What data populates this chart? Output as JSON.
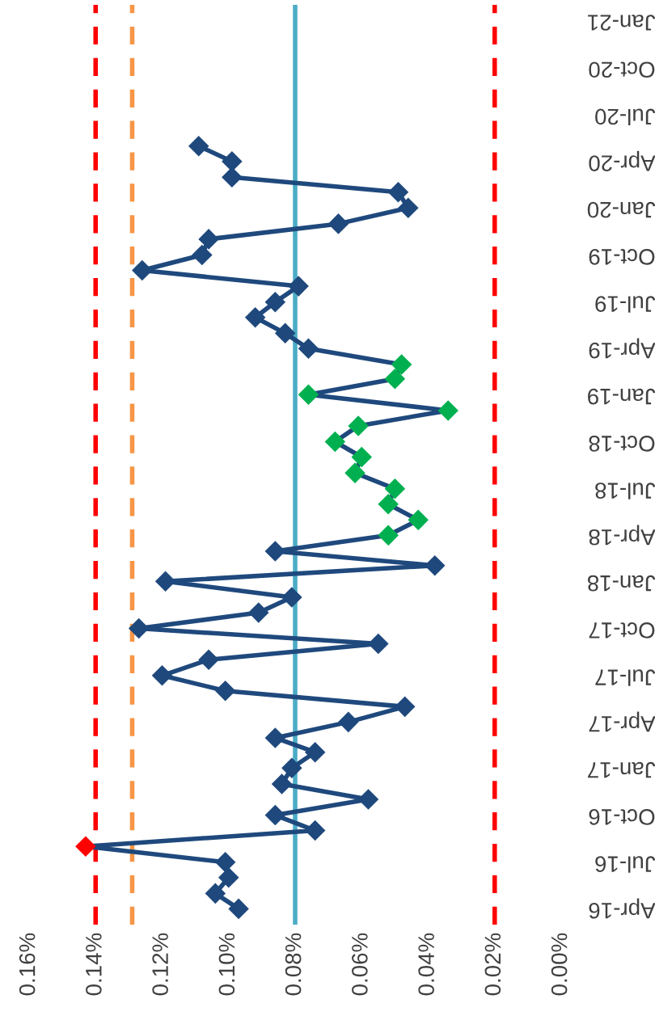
{
  "chart_data": {
    "type": "line",
    "orientation": "horizontal",
    "marker": "diamond",
    "line_style": "solid",
    "x": [
      "2016-04",
      "2016-05",
      "2016-06",
      "2016-07",
      "2016-08",
      "2016-09",
      "2016-10",
      "2016-11",
      "2016-12",
      "2017-01",
      "2017-02",
      "2017-03",
      "2017-04",
      "2017-05",
      "2017-06",
      "2017-07",
      "2017-08",
      "2017-09",
      "2017-10",
      "2017-11",
      "2017-12",
      "2018-01",
      "2018-02",
      "2018-03",
      "2018-04",
      "2018-05",
      "2018-06",
      "2018-07",
      "2018-08",
      "2018-09",
      "2018-10",
      "2018-11",
      "2018-12",
      "2019-01",
      "2019-02",
      "2019-03",
      "2019-04",
      "2019-05",
      "2019-06",
      "2019-07",
      "2019-08",
      "2019-09",
      "2019-10",
      "2019-11",
      "2019-12",
      "2020-01",
      "2020-02",
      "2020-03",
      "2020-04",
      "2020-05"
    ],
    "series": [
      {
        "color": "#1f497d",
        "values": [
          0.097,
          0.104,
          0.1,
          0.101,
          0.143,
          0.074,
          0.086,
          0.058,
          0.084,
          0.081,
          0.074,
          0.086,
          0.064,
          0.047,
          0.101,
          0.12,
          0.106,
          0.055,
          0.127,
          0.091,
          0.081,
          0.119,
          0.038,
          0.086,
          0.052,
          0.043,
          0.052,
          0.05,
          0.062,
          0.06,
          0.068,
          0.061,
          0.034,
          0.076,
          0.05,
          0.048,
          0.076,
          0.083,
          0.092,
          0.086,
          0.079,
          0.126,
          0.108,
          0.106,
          0.067,
          0.046,
          0.049,
          0.099,
          0.099,
          0.109
        ],
        "colors": [
          "#1f497d",
          "#1f497d",
          "#1f497d",
          "#1f497d",
          "#ff0000",
          "#1f497d",
          "#1f497d",
          "#1f497d",
          "#1f497d",
          "#1f497d",
          "#1f497d",
          "#1f497d",
          "#1f497d",
          "#1f497d",
          "#1f497d",
          "#1f497d",
          "#1f497d",
          "#1f497d",
          "#1f497d",
          "#1f497d",
          "#1f497d",
          "#1f497d",
          "#1f497d",
          "#1f497d",
          "#00b050",
          "#00b050",
          "#00b050",
          "#00b050",
          "#00b050",
          "#00b050",
          "#00b050",
          "#00b050",
          "#00b050",
          "#00b050",
          "#00b050",
          "#00b050",
          "#1f497d",
          "#1f497d",
          "#1f497d",
          "#1f497d",
          "#1f497d",
          "#1f497d",
          "#1f497d",
          "#1f497d",
          "#1f497d",
          "#1f497d",
          "#1f497d",
          "#1f497d",
          "#1f497d",
          "#1f497d"
        ]
      }
    ],
    "xlim": [
      0.16,
      0.0
    ],
    "xticks": [
      {
        "value": 0.16,
        "label": "0.16%"
      },
      {
        "value": 0.14,
        "label": "0.14%"
      },
      {
        "value": 0.12,
        "label": "0.12%"
      },
      {
        "value": 0.1,
        "label": "0.10%"
      },
      {
        "value": 0.08,
        "label": "0.08%"
      },
      {
        "value": 0.06,
        "label": "0.06%"
      },
      {
        "value": 0.04,
        "label": "0.04%"
      },
      {
        "value": 0.02,
        "label": "0.02%"
      },
      {
        "value": 0.0,
        "label": "0.00%"
      }
    ],
    "ylim": [
      "2016-03",
      "2021-02"
    ],
    "yticks": [
      {
        "value": "2016-04",
        "label": "Apr-16"
      },
      {
        "value": "2016-07",
        "label": "Jul-16"
      },
      {
        "value": "2016-10",
        "label": "Oct-16"
      },
      {
        "value": "2017-01",
        "label": "Jan-17"
      },
      {
        "value": "2017-04",
        "label": "Apr-17"
      },
      {
        "value": "2017-07",
        "label": "Jul-17"
      },
      {
        "value": "2017-10",
        "label": "Oct-17"
      },
      {
        "value": "2018-01",
        "label": "Jan-18"
      },
      {
        "value": "2018-04",
        "label": "Apr-18"
      },
      {
        "value": "2018-07",
        "label": "Jul-18"
      },
      {
        "value": "2018-10",
        "label": "Oct-18"
      },
      {
        "value": "2019-01",
        "label": "Jan-19"
      },
      {
        "value": "2019-04",
        "label": "Apr-19"
      },
      {
        "value": "2019-07",
        "label": "Jul-19"
      },
      {
        "value": "2019-10",
        "label": "Oct-19"
      },
      {
        "value": "2020-01",
        "label": "Jan-20"
      },
      {
        "value": "2020-04",
        "label": "Apr-20"
      },
      {
        "value": "2020-07",
        "label": "Jul-20"
      },
      {
        "value": "2020-10",
        "label": "Oct-20"
      },
      {
        "value": "2021-01",
        "label": "Jan-21"
      }
    ],
    "ref_lines": [
      {
        "axis": "x",
        "value": 0.14,
        "color": "#ff0000",
        "line_style": "dashed"
      },
      {
        "axis": "x",
        "value": 0.129,
        "color": "#f79646",
        "line_style": "dashed"
      },
      {
        "axis": "x",
        "value": 0.08,
        "color": "#4bacc6",
        "line_style": "solid"
      },
      {
        "axis": "x",
        "value": 0.02,
        "color": "#ff0000",
        "line_style": "dashed"
      }
    ]
  }
}
